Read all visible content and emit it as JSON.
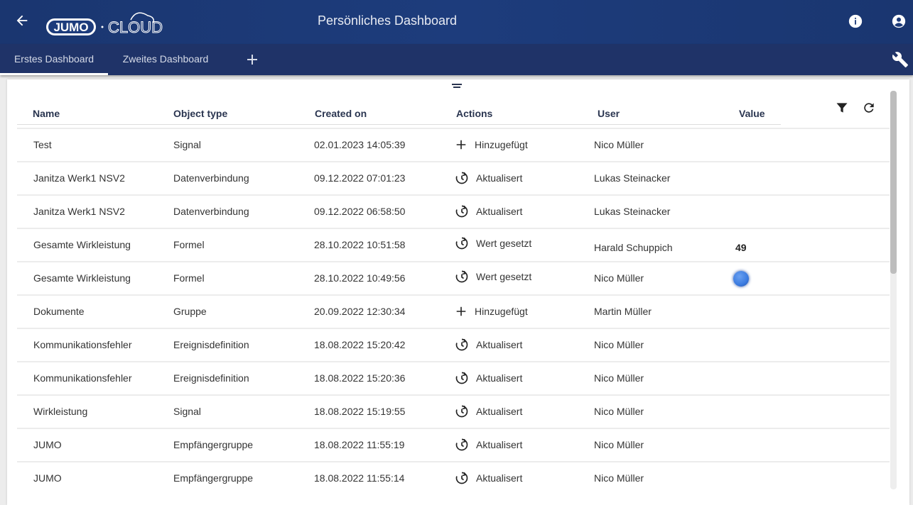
{
  "header": {
    "title": "Persönliches Dashboard",
    "logo_brand": "JUMO",
    "logo_product": "CLOUD"
  },
  "tabs": [
    {
      "label": "Erstes Dashboard",
      "active": true
    },
    {
      "label": "Zweites Dashboard",
      "active": false
    }
  ],
  "table": {
    "columns": [
      "Name",
      "Object type",
      "Created on",
      "Actions",
      "User",
      "Value"
    ],
    "rows": [
      {
        "name": "Test",
        "type": "Signal",
        "created": "02.01.2023 14:05:39",
        "action": "Hinzugefügt",
        "icon": "plus",
        "user": "Nico Müller",
        "value": ""
      },
      {
        "name": "Janitza Werk1 NSV2",
        "type": "Datenverbindung",
        "created": "09.12.2022 07:01:23",
        "action": "Aktualisert",
        "icon": "history",
        "user": "Lukas Steinacker",
        "value": ""
      },
      {
        "name": "Janitza Werk1 NSV2",
        "type": "Datenverbindung",
        "created": "09.12.2022 06:58:50",
        "action": "Aktualisert",
        "icon": "history",
        "user": "Lukas Steinacker",
        "value": ""
      },
      {
        "name": "Gesamte Wirkleistung",
        "type": "Formel",
        "created": "28.10.2022 10:51:58",
        "action": "Wert gesetzt",
        "icon": "history",
        "user": "Harald Schuppich",
        "value": "49"
      },
      {
        "name": "Gesamte Wirkleistung",
        "type": "Formel",
        "created": "28.10.2022 10:49:56",
        "action": "Wert gesetzt",
        "icon": "history",
        "user": "Nico Müller",
        "value": "",
        "value_indicator": "blue-dot"
      },
      {
        "name": "Dokumente",
        "type": "Gruppe",
        "created": "20.09.2022 12:30:34",
        "action": "Hinzugefügt",
        "icon": "plus",
        "user": "Martin Müller",
        "value": ""
      },
      {
        "name": "Kommunikationsfehler",
        "type": "Ereignisdefinition",
        "created": "18.08.2022 15:20:42",
        "action": "Aktualisert",
        "icon": "history",
        "user": "Nico Müller",
        "value": ""
      },
      {
        "name": "Kommunikationsfehler",
        "type": "Ereignisdefinition",
        "created": "18.08.2022 15:20:36",
        "action": "Aktualisert",
        "icon": "history",
        "user": "Nico Müller",
        "value": ""
      },
      {
        "name": "Wirkleistung",
        "type": "Signal",
        "created": "18.08.2022 15:19:55",
        "action": "Aktualisert",
        "icon": "history",
        "user": "Nico Müller",
        "value": ""
      },
      {
        "name": "JUMO",
        "type": "Empfängergruppe",
        "created": "18.08.2022 11:55:19",
        "action": "Aktualisert",
        "icon": "history",
        "user": "Nico Müller",
        "value": ""
      },
      {
        "name": "JUMO",
        "type": "Empfängergruppe",
        "created": "18.08.2022 11:55:14",
        "action": "Aktualisert",
        "icon": "history",
        "user": "Nico Müller",
        "value": ""
      }
    ]
  },
  "colors": {
    "header": "#1c3a78",
    "tabbar": "#1f3368",
    "dot": "#3b7be0"
  }
}
